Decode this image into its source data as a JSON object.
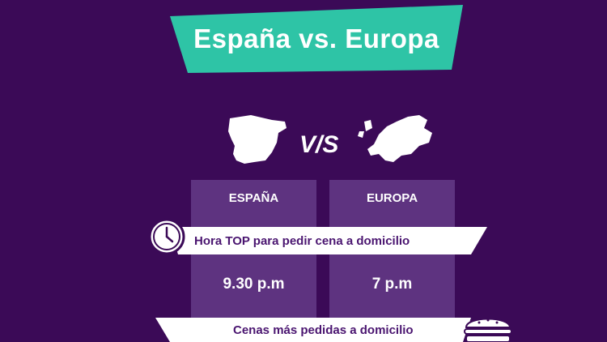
{
  "banner": {
    "title": "España vs. Europa",
    "color": "#2ec4a6"
  },
  "versus": {
    "text": "V/S"
  },
  "table": {
    "headers": [
      "ESPAÑA",
      "EUROPA"
    ],
    "rows": [
      {
        "label": "Hora TOP para pedir cena a domicilio",
        "values": [
          "9.30 p.m",
          "7 p.m"
        ]
      },
      {
        "label": "Cenas más pedidas a domicilio",
        "values": []
      }
    ]
  },
  "colors": {
    "background": "#3b0a57",
    "column": "#5e3380",
    "ribbon": "#ffffff",
    "ribbon_text": "#4a1570"
  },
  "icons": [
    "spain-map-icon",
    "europe-map-icon",
    "clock-icon",
    "burger-icon"
  ]
}
